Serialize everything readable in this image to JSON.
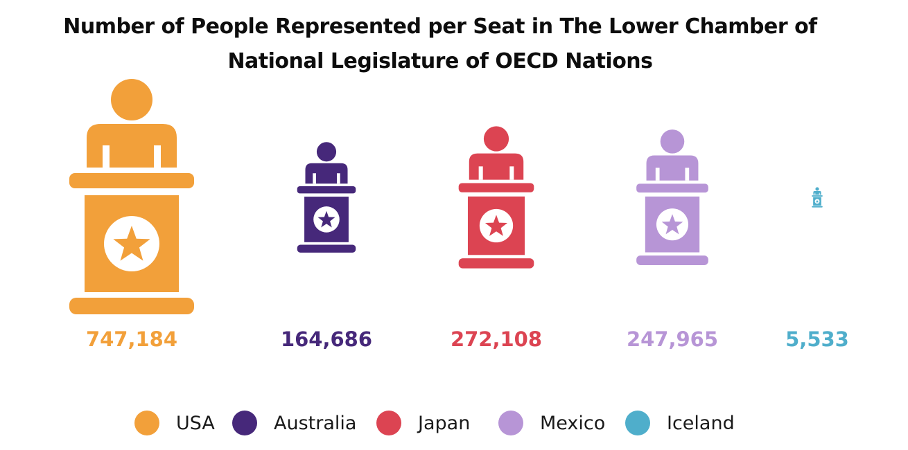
{
  "chart_data": {
    "type": "bar",
    "title": "Number of People Represented per Seat in The Lower Chamber of National Legislature of OECD Nations",
    "categories": [
      "USA",
      "Australia",
      "Japan",
      "Mexico",
      "Iceland"
    ],
    "values": [
      747184,
      164686,
      272108,
      247965,
      5533
    ],
    "value_labels": [
      "747,184",
      "164,686",
      "272,108",
      "247,965",
      "5,533"
    ],
    "colors": [
      "#F2A03A",
      "#46287A",
      "#DC4452",
      "#B795D6",
      "#4FAECB"
    ],
    "legend": {
      "placement": "bottom",
      "entries": [
        "USA",
        "Australia",
        "Japan",
        "Mexico",
        "Iceland"
      ]
    },
    "marker_icon": "podium-speaker-icon",
    "grid": false
  }
}
